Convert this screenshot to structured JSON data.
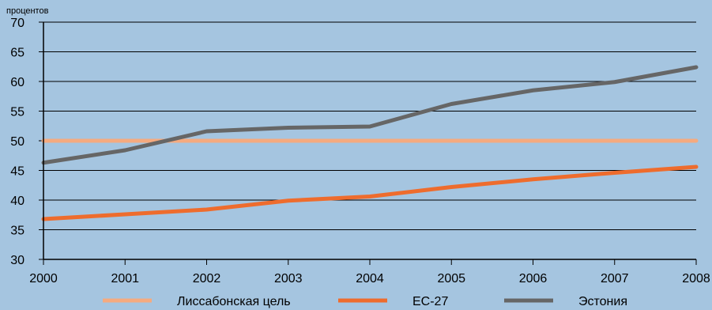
{
  "chart_data": {
    "type": "line",
    "ylabel": "процентов",
    "xlabel": "",
    "x": [
      2000,
      2001,
      2002,
      2003,
      2004,
      2005,
      2006,
      2007,
      2008
    ],
    "ylim": [
      30,
      70
    ],
    "yticks": [
      30,
      35,
      40,
      45,
      50,
      55,
      60,
      65,
      70
    ],
    "grid": true,
    "legend_position": "bottom",
    "series": [
      {
        "name": "Лиссабонская цель",
        "color": "#f5aa7f",
        "values": [
          50,
          50,
          50,
          50,
          50,
          50,
          50,
          50,
          50
        ]
      },
      {
        "name": "ЕС-27",
        "color": "#ee6c2d",
        "values": [
          36.8,
          37.6,
          38.4,
          39.9,
          40.6,
          42.2,
          43.5,
          44.6,
          45.6
        ]
      },
      {
        "name": "Эстония",
        "color": "#666666",
        "values": [
          46.3,
          48.4,
          51.6,
          52.2,
          52.4,
          56.2,
          58.5,
          59.9,
          62.4
        ]
      }
    ]
  }
}
